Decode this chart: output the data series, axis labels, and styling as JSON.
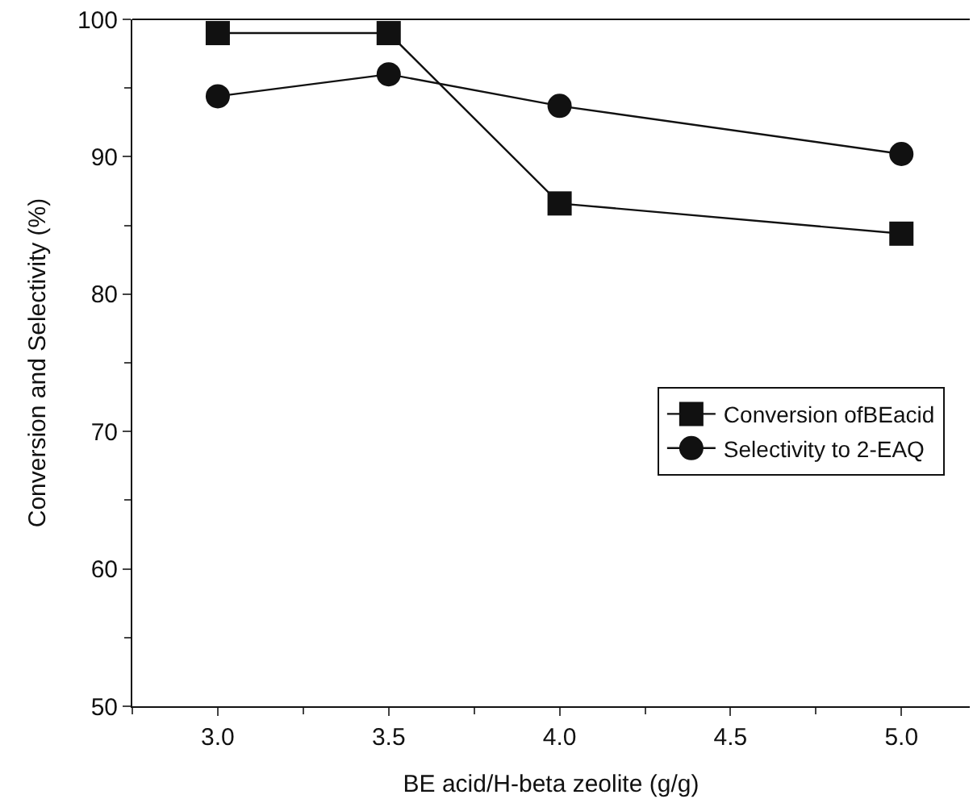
{
  "chart_data": {
    "type": "line",
    "xlabel": "BE acid/H-beta zeolite (g/g)",
    "ylabel": "Conversion and Selectivity (%)",
    "x": [
      3.0,
      3.5,
      4.0,
      5.0
    ],
    "series": [
      {
        "name": "Conversion ofBEacid",
        "color": "#111111",
        "marker": "square",
        "values": [
          99.0,
          99.0,
          86.6,
          84.4
        ]
      },
      {
        "name": "Selectivity to 2-EAQ",
        "color": "#111111",
        "marker": "circle",
        "values": [
          94.4,
          96.0,
          93.7,
          90.2
        ]
      }
    ],
    "xlim": [
      2.75,
      5.2
    ],
    "xticks": [
      {
        "value": 3.0,
        "label": "3.0"
      },
      {
        "value": 3.5,
        "label": "3.5"
      },
      {
        "value": 4.0,
        "label": "4.0"
      },
      {
        "value": 4.5,
        "label": "4.5"
      },
      {
        "value": 5.0,
        "label": "5.0"
      }
    ],
    "ylim": [
      50,
      100
    ],
    "yticks": [
      50,
      60,
      70,
      80,
      90,
      100
    ],
    "legend": "right",
    "line_style": "solid"
  }
}
